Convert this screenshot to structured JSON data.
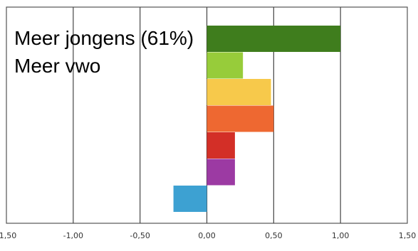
{
  "chart_data": {
    "type": "bar",
    "orientation": "horizontal",
    "xlim": [
      -1.5,
      1.5
    ],
    "x_ticks": [
      -1.5,
      -1.0,
      -0.5,
      0.0,
      0.5,
      1.0,
      1.5
    ],
    "x_tick_labels": [
      "-1,50",
      "-1,00",
      "-0,50",
      "0,00",
      "0,50",
      "1,00",
      "1,50"
    ],
    "grid": "vertical",
    "annotations": [
      "Meer jongens (61%)",
      "Meer vwo"
    ],
    "bars": [
      {
        "value": 1.0,
        "color": "#3f7d1d"
      },
      {
        "value": 0.27,
        "color": "#97cc3a"
      },
      {
        "value": 0.48,
        "color": "#f7c94b"
      },
      {
        "value": 0.5,
        "color": "#ee6831"
      },
      {
        "value": 0.21,
        "color": "#d32f27"
      },
      {
        "value": 0.21,
        "color": "#9c3aa3"
      },
      {
        "value": -0.25,
        "color": "#3da1d2"
      }
    ]
  }
}
